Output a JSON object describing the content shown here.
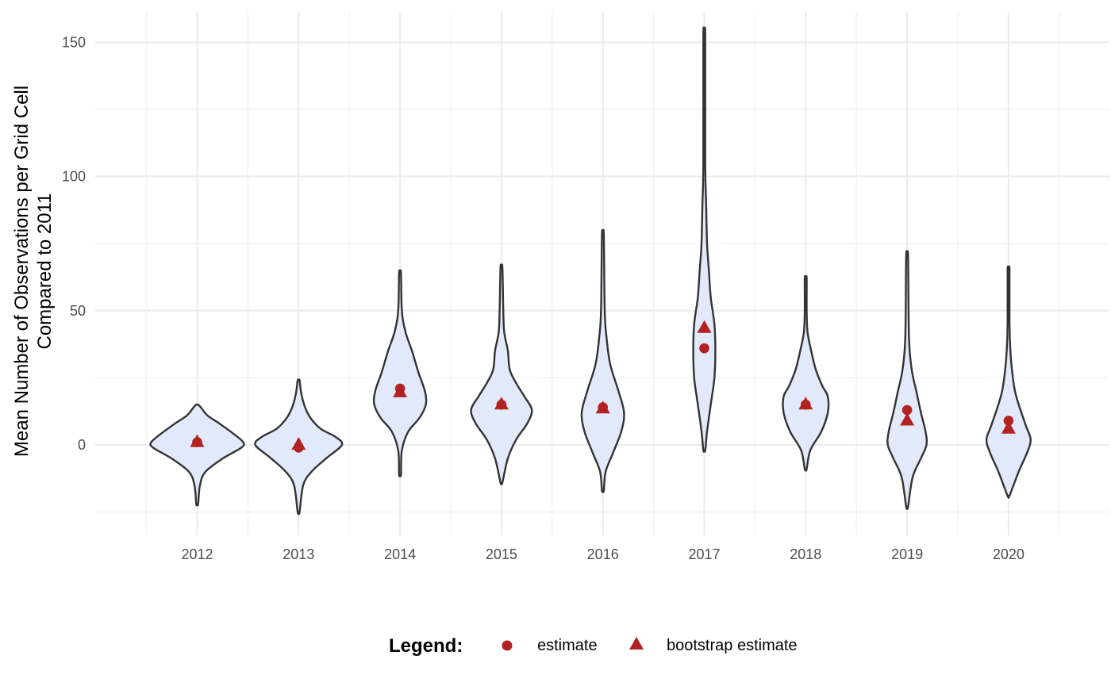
{
  "colors": {
    "violin_fill": "#e1e9fa",
    "violin_stroke": "#333333",
    "marker": "#b22222",
    "grid_major": "#ebebeb",
    "grid_minor": "#f2f2f2"
  },
  "chart_data": {
    "type": "violin",
    "ylabel": "Mean Number of Observations per Grid Cell",
    "ylabel2": "Compared to 2011",
    "xlabel": "",
    "ylim": [
      -25,
      160
    ],
    "yticks": [
      0,
      50,
      100,
      150
    ],
    "grid": true,
    "categories": [
      "2012",
      "2013",
      "2014",
      "2015",
      "2016",
      "2017",
      "2018",
      "2019",
      "2020"
    ],
    "violins": [
      {
        "year": "2012",
        "min": -22,
        "max": 15,
        "profile": [
          [
            -22,
            0.01
          ],
          [
            -15,
            0.03
          ],
          [
            -10,
            0.09
          ],
          [
            -5,
            0.28
          ],
          [
            -1,
            0.48
          ],
          [
            1,
            0.5
          ],
          [
            4,
            0.4
          ],
          [
            8,
            0.24
          ],
          [
            11,
            0.11
          ],
          [
            14,
            0.04
          ],
          [
            15,
            0.01
          ]
        ]
      },
      {
        "year": "2013",
        "min": -25,
        "max": 24,
        "profile": [
          [
            -25,
            0.01
          ],
          [
            -15,
            0.05
          ],
          [
            -10,
            0.14
          ],
          [
            -5,
            0.3
          ],
          [
            0,
            0.47
          ],
          [
            3,
            0.4
          ],
          [
            6,
            0.24
          ],
          [
            10,
            0.13
          ],
          [
            14,
            0.07
          ],
          [
            19,
            0.03
          ],
          [
            24,
            0.01
          ]
        ]
      },
      {
        "year": "2014",
        "min": -11,
        "max": 64,
        "profile": [
          [
            -11,
            0.01
          ],
          [
            -2,
            0.02
          ],
          [
            5,
            0.09
          ],
          [
            10,
            0.21
          ],
          [
            15,
            0.28
          ],
          [
            20,
            0.27
          ],
          [
            27,
            0.2
          ],
          [
            35,
            0.13
          ],
          [
            42,
            0.06
          ],
          [
            50,
            0.02
          ],
          [
            64,
            0.01
          ]
        ]
      },
      {
        "year": "2015",
        "min": -14,
        "max": 66,
        "profile": [
          [
            -14,
            0.01
          ],
          [
            -5,
            0.07
          ],
          [
            2,
            0.16
          ],
          [
            8,
            0.28
          ],
          [
            13,
            0.33
          ],
          [
            18,
            0.25
          ],
          [
            23,
            0.16
          ],
          [
            28,
            0.09
          ],
          [
            35,
            0.07
          ],
          [
            42,
            0.03
          ],
          [
            50,
            0.02
          ],
          [
            66,
            0.01
          ]
        ]
      },
      {
        "year": "2016",
        "min": -17,
        "max": 78,
        "profile": [
          [
            -17,
            0.01
          ],
          [
            -10,
            0.03
          ],
          [
            -3,
            0.11
          ],
          [
            5,
            0.2
          ],
          [
            12,
            0.23
          ],
          [
            20,
            0.17
          ],
          [
            30,
            0.08
          ],
          [
            40,
            0.04
          ],
          [
            50,
            0.02
          ],
          [
            78,
            0.01
          ]
        ]
      },
      {
        "year": "2017",
        "min": -2,
        "max": 152,
        "profile": [
          [
            -2,
            0.01
          ],
          [
            5,
            0.03
          ],
          [
            15,
            0.07
          ],
          [
            25,
            0.11
          ],
          [
            35,
            0.12
          ],
          [
            45,
            0.11
          ],
          [
            55,
            0.07
          ],
          [
            65,
            0.05
          ],
          [
            75,
            0.03
          ],
          [
            90,
            0.02
          ],
          [
            105,
            0.01
          ],
          [
            152,
            0.005
          ]
        ]
      },
      {
        "year": "2018",
        "min": -9,
        "max": 62,
        "profile": [
          [
            -9,
            0.01
          ],
          [
            -2,
            0.05
          ],
          [
            5,
            0.17
          ],
          [
            12,
            0.24
          ],
          [
            18,
            0.24
          ],
          [
            22,
            0.18
          ],
          [
            28,
            0.11
          ],
          [
            35,
            0.06
          ],
          [
            42,
            0.02
          ],
          [
            50,
            0.01
          ],
          [
            62,
            0.005
          ]
        ]
      },
      {
        "year": "2019",
        "min": -23,
        "max": 70,
        "profile": [
          [
            -23,
            0.01
          ],
          [
            -12,
            0.06
          ],
          [
            -5,
            0.15
          ],
          [
            0,
            0.21
          ],
          [
            5,
            0.2
          ],
          [
            12,
            0.15
          ],
          [
            20,
            0.1
          ],
          [
            28,
            0.05
          ],
          [
            40,
            0.02
          ],
          [
            70,
            0.005
          ]
        ]
      },
      {
        "year": "2020",
        "min": -19,
        "max": 65,
        "profile": [
          [
            -19,
            0.01
          ],
          [
            -10,
            0.11
          ],
          [
            -3,
            0.2
          ],
          [
            2,
            0.24
          ],
          [
            7,
            0.19
          ],
          [
            14,
            0.12
          ],
          [
            20,
            0.07
          ],
          [
            27,
            0.04
          ],
          [
            35,
            0.02
          ],
          [
            45,
            0.01
          ],
          [
            65,
            0.005
          ]
        ]
      }
    ],
    "series": [
      {
        "name": "estimate",
        "marker": "circle",
        "values": [
          1,
          -1,
          21,
          15,
          14,
          36,
          15,
          13,
          9
        ]
      },
      {
        "name": "bootstrap estimate",
        "marker": "triangle",
        "values": [
          1,
          0,
          19.5,
          15,
          13.5,
          43.5,
          15,
          9,
          6
        ]
      }
    ]
  },
  "legend": {
    "title": "Legend:",
    "position": "bottom",
    "items": [
      {
        "label": "estimate",
        "icon": "circle-icon"
      },
      {
        "label": "bootstrap estimate",
        "icon": "triangle-icon"
      }
    ]
  }
}
